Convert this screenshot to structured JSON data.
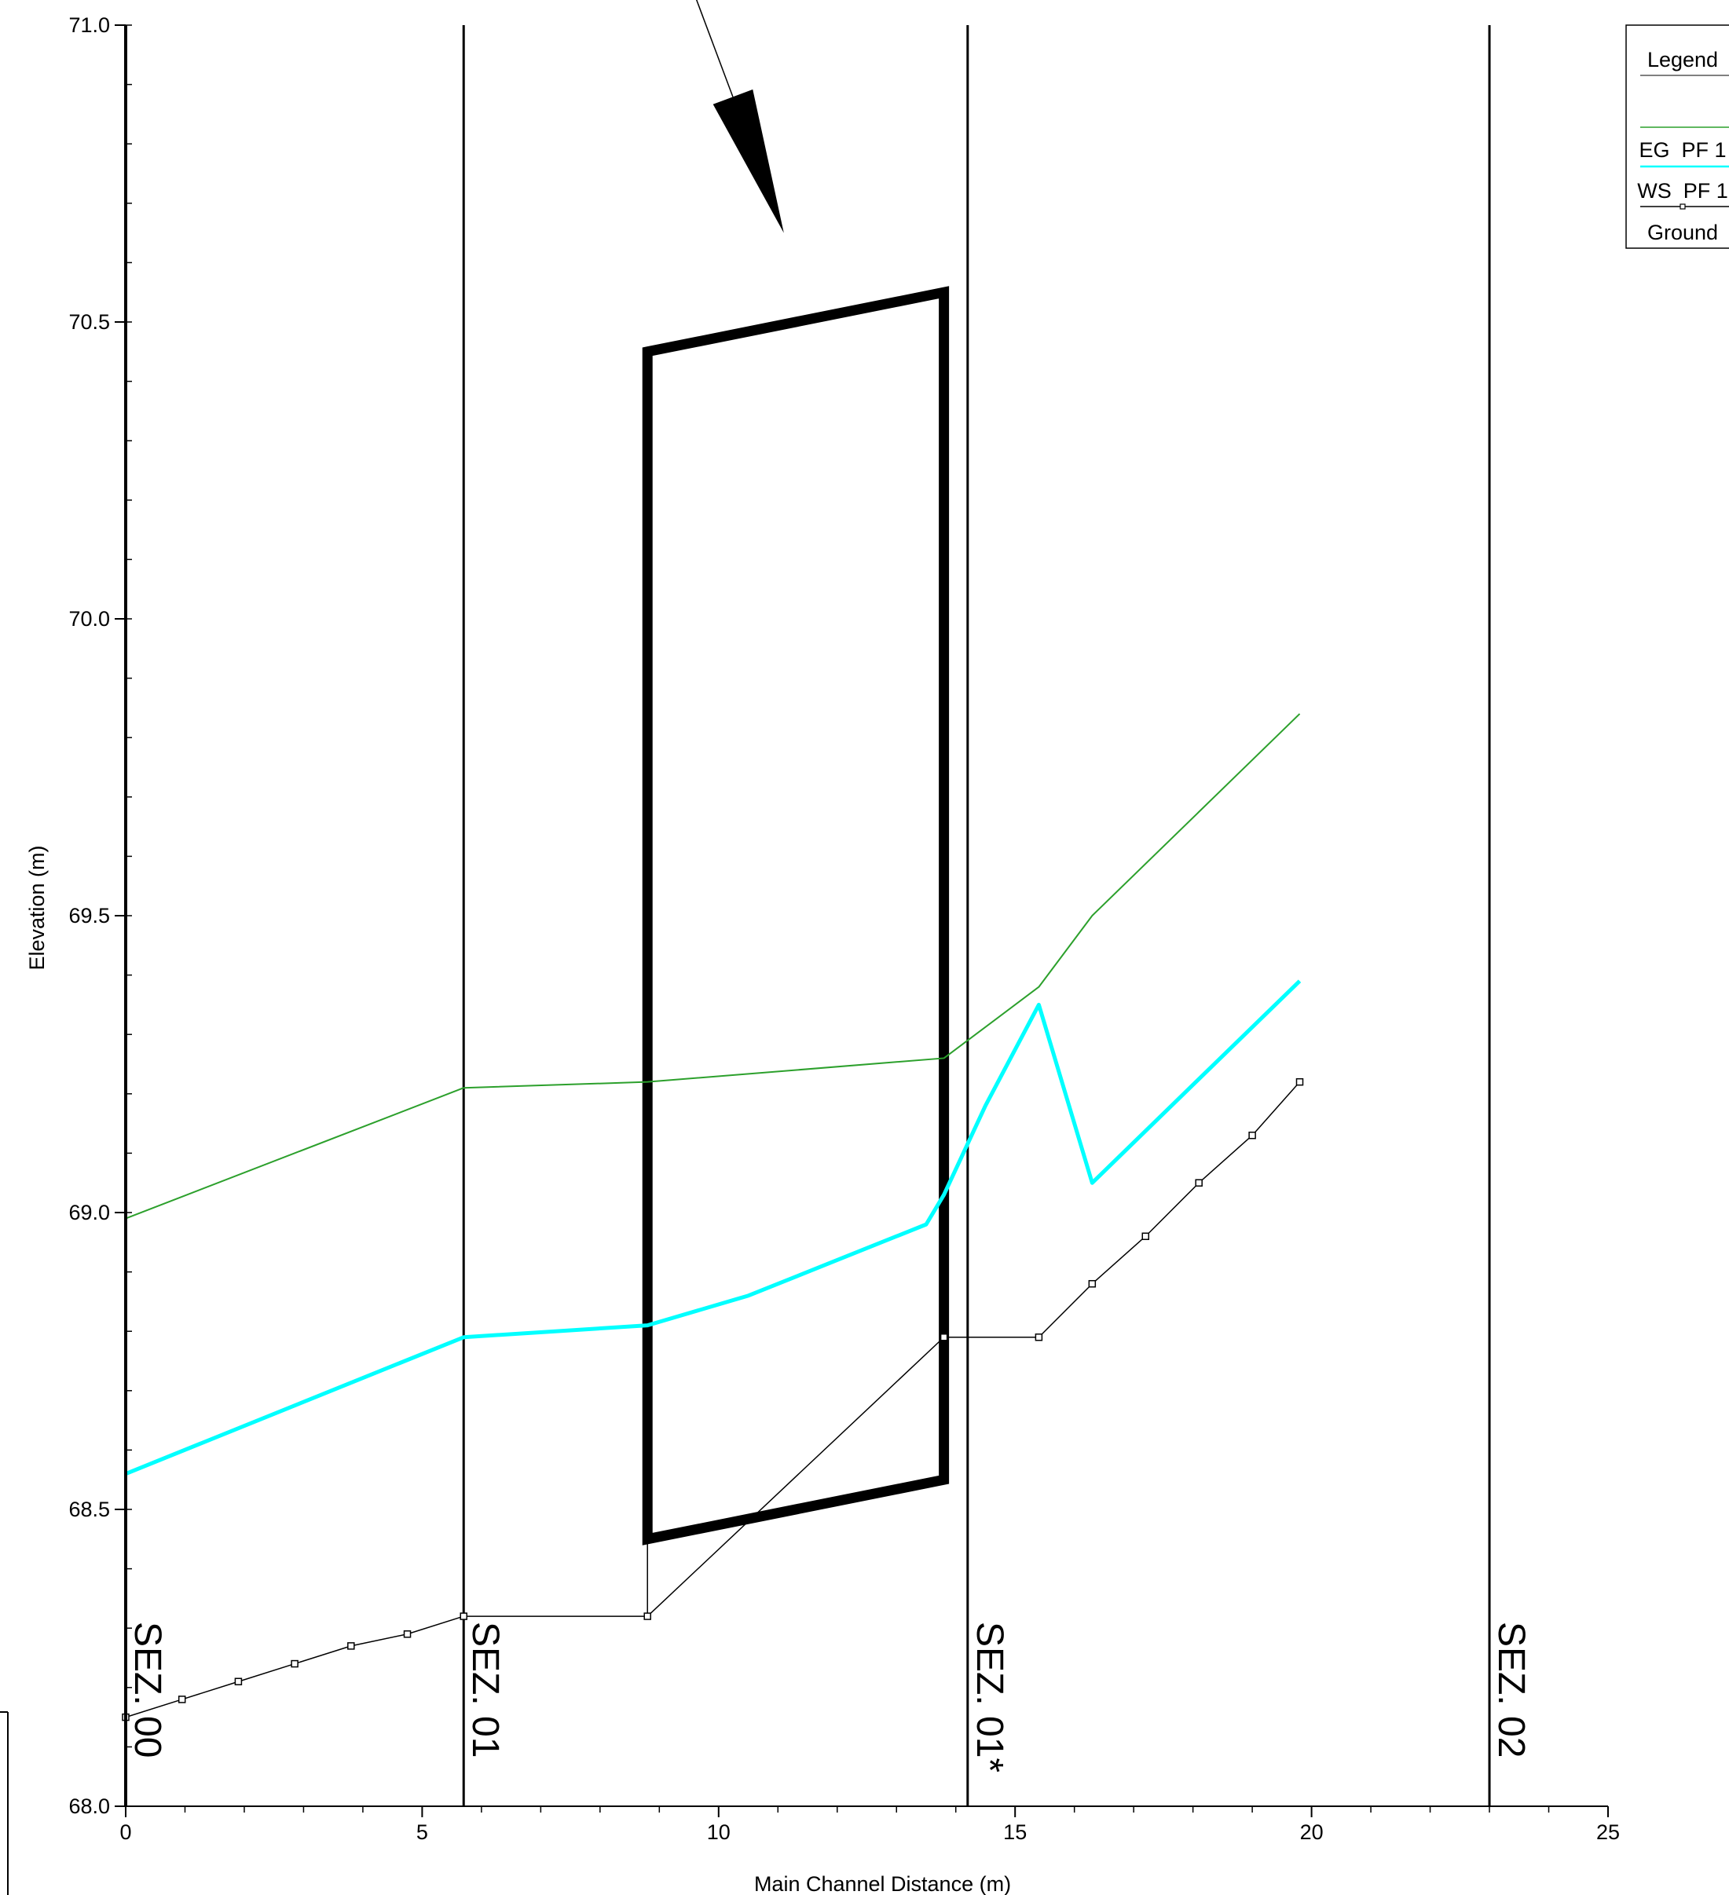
{
  "chart_data": {
    "type": "line",
    "xlabel": "Main Channel Distance (m)",
    "ylabel": "Elevation (m)",
    "xlim": [
      0,
      25
    ],
    "ylim": [
      68.0,
      71.0
    ],
    "x_ticks": [
      0,
      5,
      10,
      15,
      20,
      25
    ],
    "y_ticks": [
      68.0,
      68.5,
      69.0,
      69.5,
      70.0,
      70.5,
      71.0
    ],
    "x_tick_labels": [
      "0",
      "5",
      "10",
      "15",
      "20",
      "25"
    ],
    "y_tick_labels": [
      "68.0",
      "68.5",
      "69.0",
      "69.5",
      "70.0",
      "70.5",
      "71.0"
    ],
    "grid": false,
    "legend_position": "top-right",
    "legend": {
      "title": "Legend",
      "entries": [
        "EG  PF 1",
        "WS  PF 1",
        "Ground"
      ]
    },
    "series": [
      {
        "name": "EG  PF 1",
        "color": "#2ca02c",
        "x": [
          0,
          5.7,
          8.8,
          13.8,
          15.4,
          16.3,
          19.8
        ],
        "y": [
          68.99,
          69.21,
          69.22,
          69.26,
          69.38,
          69.5,
          69.84
        ]
      },
      {
        "name": "WS  PF 1",
        "color": "#00ffff",
        "x": [
          0,
          5.7,
          8.8,
          10.5,
          12.0,
          13.0,
          13.5,
          13.8,
          14.5,
          15.4,
          16.3,
          19.8
        ],
        "y": [
          68.56,
          68.79,
          68.81,
          68.86,
          68.92,
          68.96,
          68.98,
          69.03,
          69.18,
          69.35,
          69.05,
          69.39
        ]
      },
      {
        "name": "Ground",
        "color": "#000000",
        "x": [
          0,
          0.95,
          1.9,
          2.85,
          3.8,
          4.75,
          5.7,
          8.8,
          13.8,
          15.4,
          16.3,
          17.2,
          18.1,
          19.0,
          19.8
        ],
        "y": [
          68.15,
          68.18,
          68.21,
          68.24,
          68.27,
          68.29,
          68.32,
          68.32,
          68.79,
          68.79,
          68.88,
          68.96,
          69.05,
          69.13,
          69.22
        ]
      }
    ],
    "sections": [
      {
        "label": "SEZ. 00",
        "x": 0
      },
      {
        "label": "SEZ. 01",
        "x": 5.7
      },
      {
        "label": "SEZ. 01*",
        "x": 14.2
      },
      {
        "label": "SEZ. 02",
        "x": 23.0
      }
    ],
    "structure": {
      "polygon": [
        [
          8.8,
          70.45
        ],
        [
          13.8,
          70.55
        ],
        [
          13.8,
          68.55
        ],
        [
          8.8,
          68.45
        ]
      ]
    },
    "annotation_arrow": {
      "from": [
        9.6,
        71.05
      ],
      "to": [
        11.1,
        70.65
      ]
    }
  }
}
